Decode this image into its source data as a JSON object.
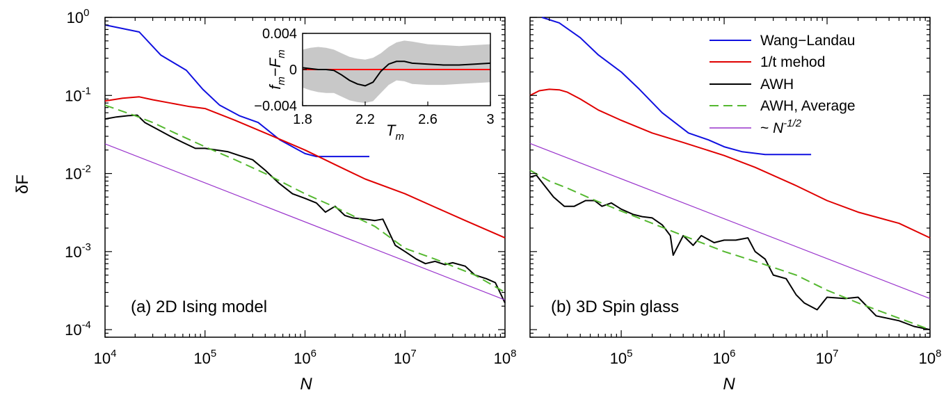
{
  "colors": {
    "wang_landau": "#1010e0",
    "one_over_t": "#e00000",
    "awh": "#000000",
    "awh_average": "#55b830",
    "power_law": "#9933cc",
    "inset_band": "#c8c8c8",
    "inset_zero": "#ff0000"
  },
  "ylabel": "δF",
  "y_tick_labels": [
    {
      "base": "10",
      "exp": "0"
    },
    {
      "base": "10",
      "exp": "-1"
    },
    {
      "base": "10",
      "exp": "-2"
    },
    {
      "base": "10",
      "exp": "-3"
    },
    {
      "base": "10",
      "exp": "-4"
    }
  ],
  "legend": {
    "wang_landau": "Wang−Landau",
    "one_over_t": "1/t mehod",
    "awh": "AWH",
    "awh_average": "AWH, Average",
    "power_law_prefix": "~ ",
    "power_law_base": "N",
    "power_law_exp": "-1/2"
  },
  "chart_data": [
    {
      "type": "line",
      "panel_label": "(a) 2D Ising model",
      "xlabel": "N",
      "ylabel": "δF",
      "x_scale": "log",
      "y_scale": "log",
      "xlim": [
        10000,
        100000000
      ],
      "ylim": [
        8e-05,
        1
      ],
      "x_tick_labels": [
        {
          "base": "10",
          "exp": "4"
        },
        {
          "base": "10",
          "exp": "5"
        },
        {
          "base": "10",
          "exp": "6"
        },
        {
          "base": "10",
          "exp": "7"
        },
        {
          "base": "10",
          "exp": "8"
        }
      ],
      "series": [
        {
          "name": "Wang−Landau",
          "color_key": "wang_landau",
          "x": [
            10000,
            22000,
            36000,
            65000,
            95000,
            140000,
            220000,
            340000,
            560000,
            1000000,
            1300000,
            2000000,
            4400000
          ],
          "y": [
            0.8,
            0.65,
            0.33,
            0.21,
            0.12,
            0.075,
            0.055,
            0.045,
            0.027,
            0.018,
            0.0165,
            0.0165,
            0.0165
          ]
        },
        {
          "name": "1/t mehod",
          "color_key": "one_over_t",
          "x": [
            10000,
            15000,
            22000,
            30000,
            45000,
            70000,
            100000,
            200000,
            400000,
            1000000,
            2000000,
            4000000,
            10000000,
            20000000,
            40000000,
            100000000
          ],
          "y": [
            0.085,
            0.092,
            0.096,
            0.088,
            0.08,
            0.072,
            0.068,
            0.048,
            0.033,
            0.02,
            0.013,
            0.0085,
            0.0055,
            0.0037,
            0.0025,
            0.0015
          ]
        },
        {
          "name": "AWH",
          "color_key": "awh",
          "x": [
            10000,
            13000,
            17000,
            21000,
            25000,
            32000,
            45000,
            60000,
            80000,
            100000,
            130000,
            170000,
            220000,
            300000,
            400000,
            550000,
            750000,
            1000000,
            1300000,
            1600000,
            2000000,
            2500000,
            3000000,
            4000000,
            5000000,
            6000000,
            8000000,
            10000000,
            13000000,
            16000000,
            20000000,
            25000000,
            30000000,
            40000000,
            50000000,
            65000000,
            80000000,
            100000000
          ],
          "y": [
            0.05,
            0.053,
            0.055,
            0.056,
            0.045,
            0.038,
            0.03,
            0.025,
            0.021,
            0.021,
            0.02,
            0.019,
            0.017,
            0.015,
            0.011,
            0.0075,
            0.0055,
            0.0048,
            0.0042,
            0.0032,
            0.0038,
            0.0029,
            0.0027,
            0.0026,
            0.0025,
            0.0026,
            0.0012,
            0.001,
            0.0008,
            0.0007,
            0.00075,
            0.00068,
            0.00072,
            0.00065,
            0.0005,
            0.00045,
            0.0004,
            0.00022
          ]
        },
        {
          "name": "AWH, Average",
          "color_key": "awh_average",
          "dashed": true,
          "x": [
            10000,
            20000,
            30000,
            50000,
            100000,
            200000,
            400000,
            1000000,
            2000000,
            5000000,
            10000000,
            20000000,
            50000000,
            100000000
          ],
          "y": [
            0.075,
            0.055,
            0.045,
            0.033,
            0.022,
            0.015,
            0.01,
            0.0055,
            0.0037,
            0.0021,
            0.0011,
            0.0008,
            0.0005,
            0.0003
          ]
        },
        {
          "name": "~ N^-1/2",
          "color_key": "power_law",
          "x": [
            10000,
            100000000
          ],
          "y": [
            0.024,
            0.00024
          ]
        }
      ]
    },
    {
      "type": "line",
      "panel_label": "(b) 3D Spin glass",
      "xlabel": "N",
      "x_scale": "log",
      "y_scale": "log",
      "xlim": [
        13000,
        100000000
      ],
      "ylim": [
        8e-05,
        1
      ],
      "x_tick_labels": [
        {
          "base": "10",
          "exp": "5"
        },
        {
          "base": "10",
          "exp": "6"
        },
        {
          "base": "10",
          "exp": "7"
        },
        {
          "base": "10",
          "exp": "8"
        }
      ],
      "series": [
        {
          "name": "Wang−Landau",
          "color_key": "wang_landau",
          "x": [
            17000,
            25000,
            40000,
            60000,
            100000,
            150000,
            250000,
            450000,
            700000,
            1000000,
            1500000,
            2500000,
            7000000
          ],
          "y": [
            1.0,
            0.85,
            0.55,
            0.33,
            0.2,
            0.12,
            0.06,
            0.033,
            0.027,
            0.022,
            0.019,
            0.0175,
            0.0175
          ]
        },
        {
          "name": "1/t mehod",
          "color_key": "one_over_t",
          "x": [
            13000,
            16000,
            20000,
            25000,
            30000,
            40000,
            60000,
            100000,
            200000,
            400000,
            1000000,
            2000000,
            5000000,
            10000000,
            20000000,
            50000000,
            100000000
          ],
          "y": [
            0.1,
            0.115,
            0.12,
            0.118,
            0.11,
            0.09,
            0.065,
            0.048,
            0.033,
            0.025,
            0.017,
            0.012,
            0.007,
            0.0045,
            0.0032,
            0.0023,
            0.0015
          ]
        },
        {
          "name": "AWH",
          "color_key": "awh",
          "x": [
            13000,
            15000,
            18000,
            22000,
            28000,
            35000,
            45000,
            55000,
            65000,
            80000,
            100000,
            130000,
            160000,
            200000,
            250000,
            300000,
            320000,
            400000,
            500000,
            600000,
            800000,
            1000000,
            1300000,
            1700000,
            2000000,
            2500000,
            3000000,
            4000000,
            5000000,
            6000000,
            8000000,
            10000000,
            15000000,
            20000000,
            30000000,
            50000000,
            70000000,
            100000000
          ],
          "y": [
            0.009,
            0.0095,
            0.007,
            0.005,
            0.0038,
            0.0038,
            0.0045,
            0.0045,
            0.0038,
            0.0042,
            0.0035,
            0.003,
            0.0028,
            0.0027,
            0.0022,
            0.0016,
            0.0009,
            0.0016,
            0.0012,
            0.0016,
            0.0013,
            0.0014,
            0.0014,
            0.0015,
            0.001,
            0.0008,
            0.0005,
            0.00045,
            0.00028,
            0.00022,
            0.00018,
            0.00026,
            0.00025,
            0.00026,
            0.00015,
            0.00013,
            0.00011,
            0.0001
          ]
        },
        {
          "name": "AWH, Average",
          "color_key": "awh_average",
          "dashed": true,
          "x": [
            13000,
            20000,
            30000,
            50000,
            100000,
            200000,
            400000,
            1000000,
            2000000,
            5000000,
            10000000,
            20000000,
            50000000,
            100000000
          ],
          "y": [
            0.011,
            0.008,
            0.0065,
            0.0048,
            0.0033,
            0.0023,
            0.0016,
            0.001,
            0.00075,
            0.0005,
            0.00032,
            0.00022,
            0.00014,
            0.0001
          ]
        },
        {
          "name": "~ N^-1/2",
          "color_key": "power_law",
          "x": [
            13000,
            100000000
          ],
          "y": [
            0.0243,
            0.00025
          ]
        }
      ]
    },
    {
      "type": "line",
      "panel_label": "inset",
      "ylabel_parts": {
        "a": "f",
        "a_sub": "m",
        "dash": "−",
        "b": "F",
        "b_sub": "m"
      },
      "xlabel_parts": {
        "a": "T",
        "a_sub": "m"
      },
      "xlim": [
        1.8,
        3.0
      ],
      "ylim": [
        -0.004,
        0.004
      ],
      "x_tick_labels": [
        "1.8",
        "2.2",
        "2.6",
        "3"
      ],
      "y_tick_labels": [
        "0.004",
        "0",
        "−0.004"
      ],
      "x_ticks": [
        1.8,
        2.2,
        2.6,
        3.0
      ],
      "y_ticks": [
        0.004,
        0,
        -0.004
      ],
      "series": [
        {
          "name": "f_m − F_m",
          "color_key": "awh",
          "x": [
            1.8,
            1.85,
            1.9,
            1.95,
            2.0,
            2.05,
            2.1,
            2.15,
            2.2,
            2.25,
            2.3,
            2.35,
            2.4,
            2.45,
            2.5,
            2.6,
            2.7,
            2.8,
            2.9,
            3.0
          ],
          "y": [
            0.0002,
            0.0001,
            0.0,
            0.0,
            -0.0001,
            -0.0006,
            -0.0012,
            -0.0016,
            -0.0018,
            -0.0014,
            -0.0002,
            0.0006,
            0.0009,
            0.0009,
            0.0007,
            0.0006,
            0.0005,
            0.0005,
            0.0006,
            0.0007
          ],
          "band_upper": [
            0.0022,
            0.0024,
            0.0025,
            0.0024,
            0.0022,
            0.0018,
            0.0014,
            0.0012,
            0.0011,
            0.0013,
            0.0018,
            0.0025,
            0.003,
            0.0032,
            0.0031,
            0.0028,
            0.0027,
            0.0026,
            0.0027,
            0.0028
          ],
          "band_lower": [
            -0.002,
            -0.0023,
            -0.0025,
            -0.0026,
            -0.0026,
            -0.003,
            -0.0034,
            -0.0036,
            -0.0037,
            -0.0035,
            -0.0026,
            -0.0017,
            -0.0012,
            -0.0013,
            -0.0016,
            -0.0017,
            -0.0017,
            -0.0016,
            -0.0015,
            -0.0014
          ]
        },
        {
          "name": "zero",
          "color_key": "inset_zero",
          "x": [
            1.8,
            3.0
          ],
          "y": [
            0,
            0
          ]
        }
      ]
    }
  ]
}
